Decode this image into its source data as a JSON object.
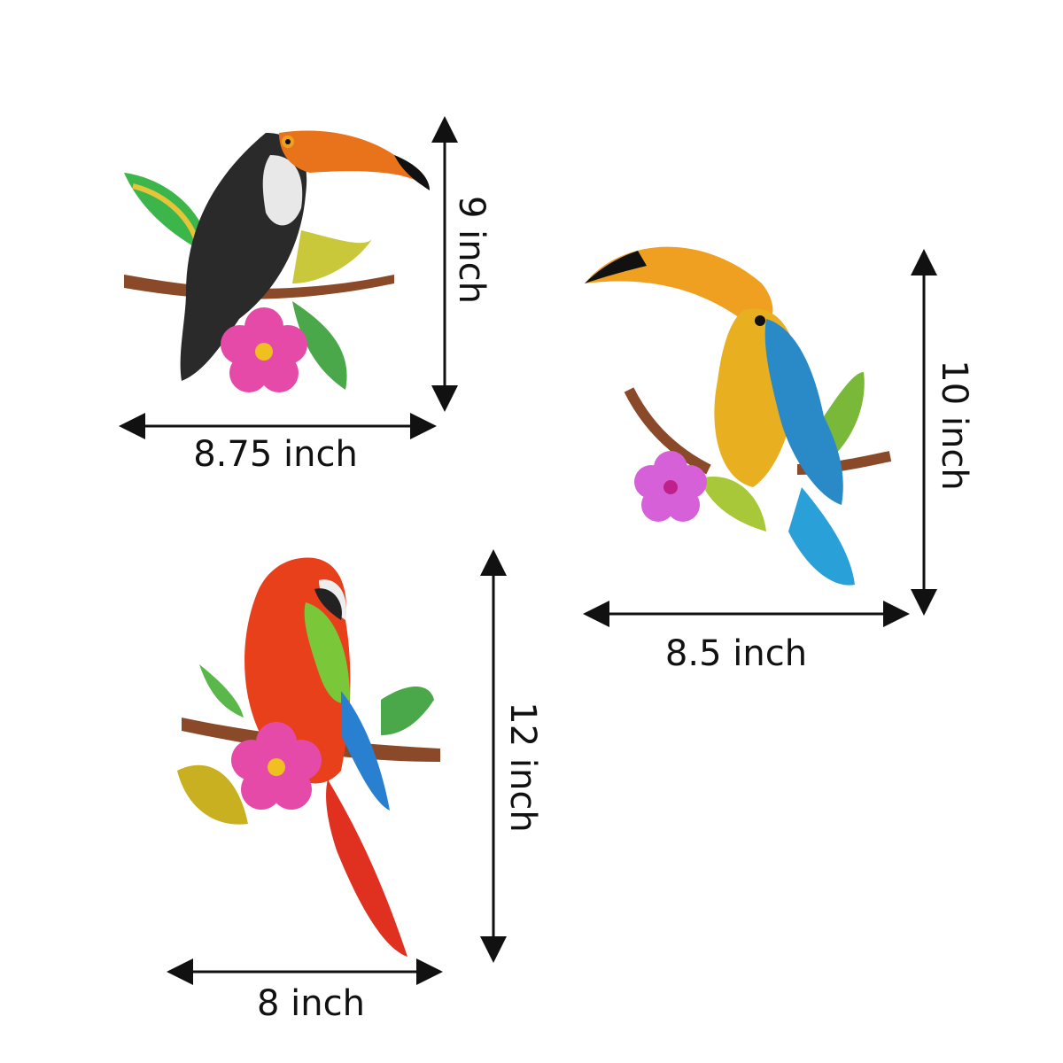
{
  "products": [
    {
      "name": "toucan-black",
      "width_label": "8.75 inch",
      "height_label": "9 inch"
    },
    {
      "name": "toucan-yellow",
      "width_label": "8.5 inch",
      "height_label": "10 inch"
    },
    {
      "name": "parrot-macaw",
      "width_label": "8 inch",
      "height_label": "12 inch"
    }
  ],
  "colors": {
    "arrow": "#111111",
    "background": "#ffffff"
  }
}
